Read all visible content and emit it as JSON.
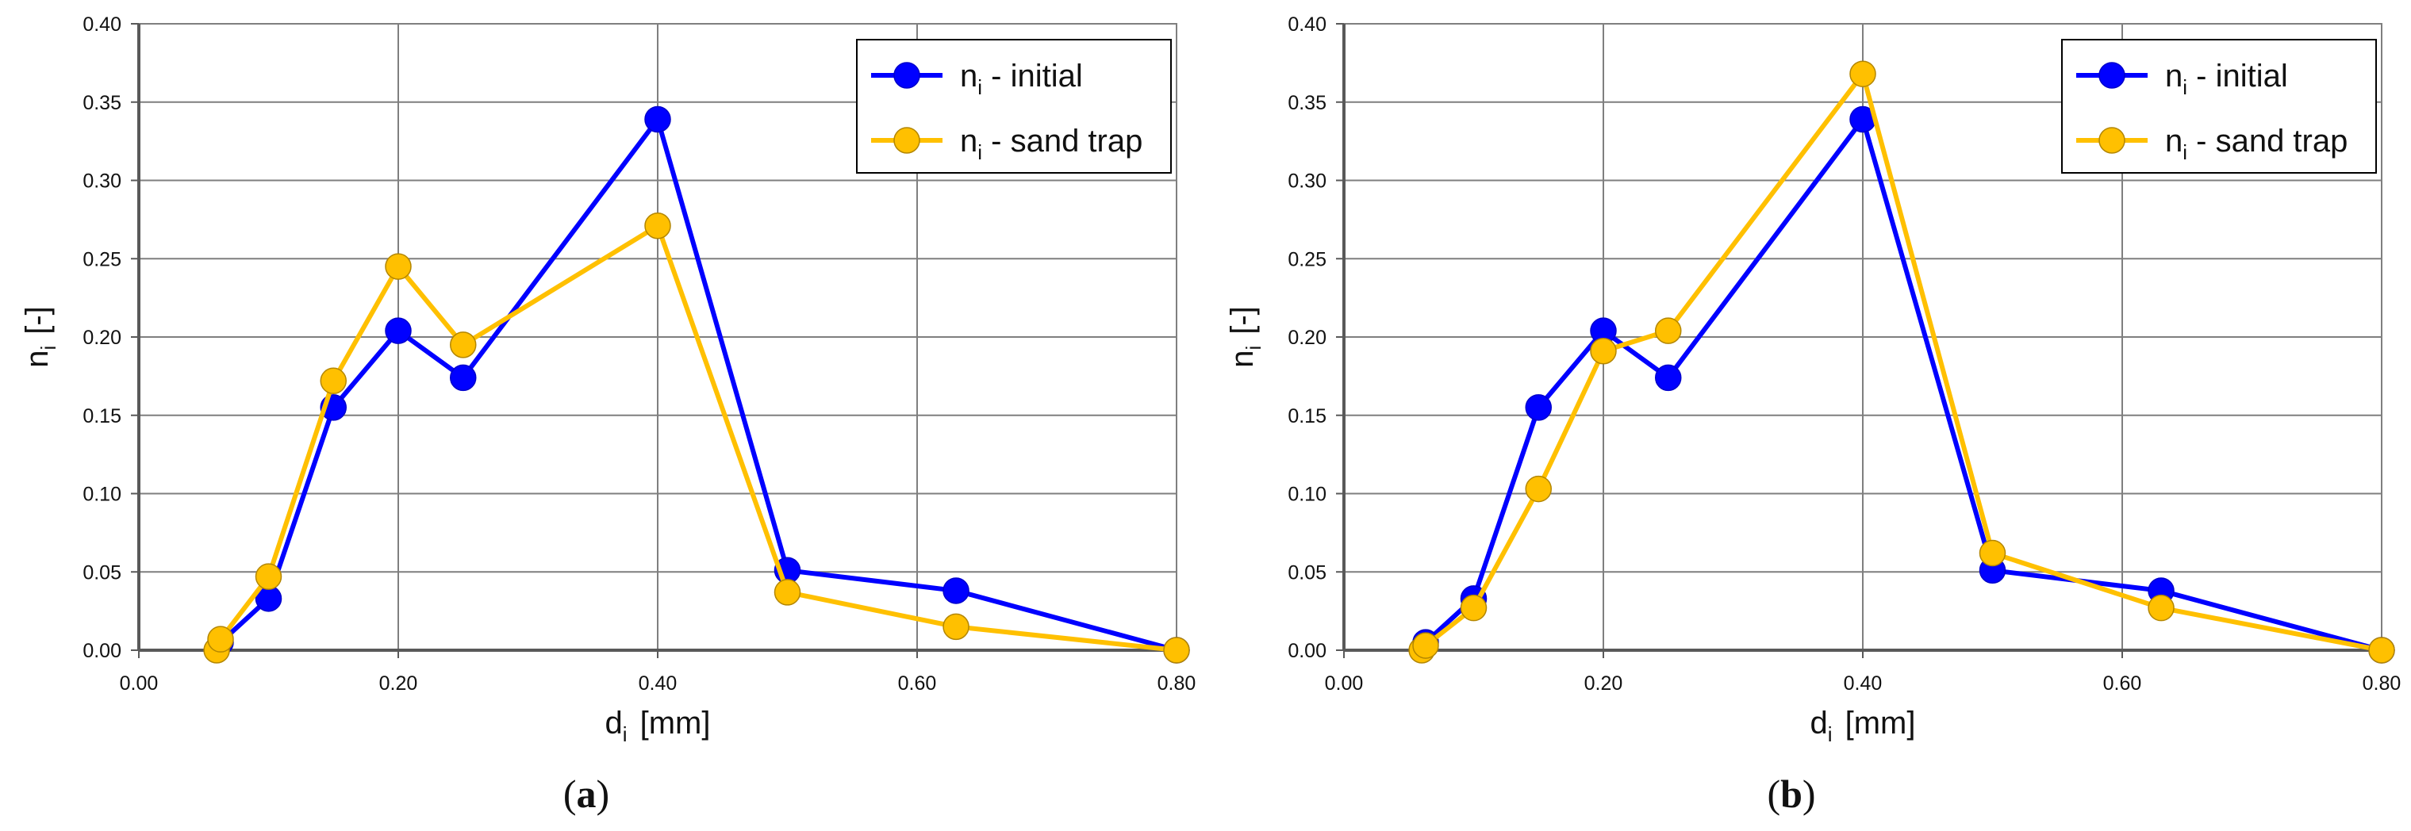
{
  "chart_data": [
    {
      "type": "line",
      "panel_label": "a",
      "xlabel": "d",
      "xlabel_sub": "i",
      "xlabel_unit": "[mm]",
      "ylabel": "n",
      "ylabel_sub": "i",
      "ylabel_unit": "[-]",
      "xlim": [
        0,
        0.8
      ],
      "ylim": [
        0,
        0.4
      ],
      "xticks": [
        "0.00",
        "0.20",
        "0.40",
        "0.60",
        "0.80"
      ],
      "yticks": [
        "0.00",
        "0.05",
        "0.10",
        "0.15",
        "0.20",
        "0.25",
        "0.30",
        "0.35",
        "0.40"
      ],
      "grid": true,
      "legend_position": "top-right",
      "series": [
        {
          "name": "n",
          "name_sub": "i",
          "name_rest": " - initial",
          "color": "#0000ff",
          "marker_color": "#0000ff",
          "x": [
            0.063,
            0.1,
            0.15,
            0.2,
            0.25,
            0.4,
            0.5,
            0.63,
            0.8
          ],
          "y": [
            0.005,
            0.033,
            0.155,
            0.204,
            0.174,
            0.339,
            0.051,
            0.038,
            0.0
          ]
        },
        {
          "name": "n",
          "name_sub": "i",
          "name_rest": " - sand trap",
          "color": "#ffc000",
          "marker_color": "#ffc000",
          "x": [
            0.06,
            0.063,
            0.1,
            0.15,
            0.2,
            0.25,
            0.4,
            0.5,
            0.63,
            0.8
          ],
          "y": [
            0.0,
            0.007,
            0.047,
            0.172,
            0.245,
            0.195,
            0.271,
            0.037,
            0.015,
            0.0
          ]
        }
      ]
    },
    {
      "type": "line",
      "panel_label": "b",
      "xlabel": "d",
      "xlabel_sub": "i",
      "xlabel_unit": "[mm]",
      "ylabel": "n",
      "ylabel_sub": "i",
      "ylabel_unit": "[-]",
      "xlim": [
        0,
        0.8
      ],
      "ylim": [
        0,
        0.4
      ],
      "xticks": [
        "0.00",
        "0.20",
        "0.40",
        "0.60",
        "0.80"
      ],
      "yticks": [
        "0.00",
        "0.05",
        "0.10",
        "0.15",
        "0.20",
        "0.25",
        "0.30",
        "0.35",
        "0.40"
      ],
      "grid": true,
      "legend_position": "top-right",
      "series": [
        {
          "name": "n",
          "name_sub": "i",
          "name_rest": " - initial",
          "color": "#0000ff",
          "marker_color": "#0000ff",
          "x": [
            0.063,
            0.1,
            0.15,
            0.2,
            0.25,
            0.4,
            0.5,
            0.63,
            0.8
          ],
          "y": [
            0.005,
            0.033,
            0.155,
            0.204,
            0.174,
            0.339,
            0.051,
            0.038,
            0.0
          ]
        },
        {
          "name": "n",
          "name_sub": "i",
          "name_rest": " - sand trap",
          "color": "#ffc000",
          "marker_color": "#ffc000",
          "x": [
            0.06,
            0.063,
            0.1,
            0.15,
            0.2,
            0.25,
            0.4,
            0.5,
            0.63,
            0.8
          ],
          "y": [
            0.0,
            0.003,
            0.027,
            0.103,
            0.191,
            0.204,
            0.368,
            0.062,
            0.027,
            0.0
          ]
        }
      ]
    }
  ]
}
